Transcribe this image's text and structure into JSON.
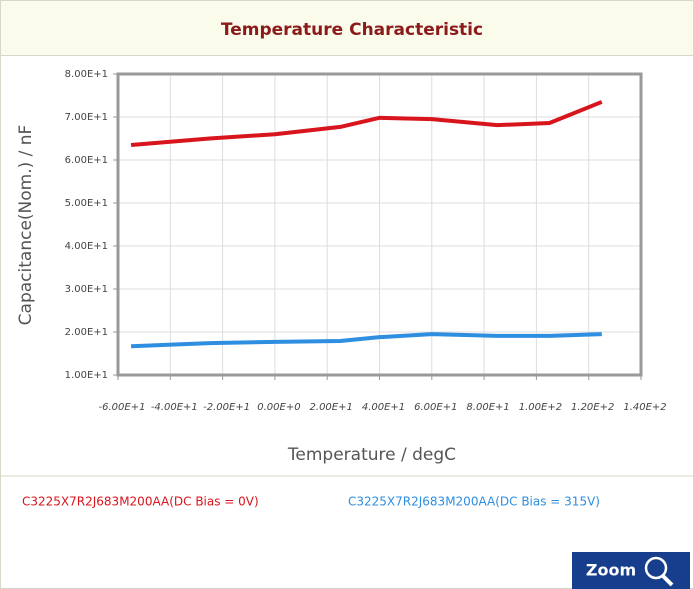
{
  "chart_data": {
    "type": "line",
    "title": "Temperature Characteristic",
    "x_label": "Temperature / degC",
    "y_label": "Capacitance(Nom.) / nF",
    "x": [
      -55,
      -25,
      0,
      25,
      40,
      60,
      85,
      105,
      125
    ],
    "series": [
      {
        "name": "C3225X7R2J683M200AA(DC Bias = 0V)",
        "color": "#d8141c",
        "values": [
          63.5,
          65,
          66,
          67.7,
          69.8,
          69.5,
          68.1,
          68.6,
          73.5
        ]
      },
      {
        "name": "C3225X7R2J683M200AA(DC Bias = 315V)",
        "color": "#2e8ee0",
        "values": [
          16.7,
          17.4,
          17.7,
          17.9,
          18.8,
          19.5,
          19.1,
          19.1,
          19.5
        ]
      }
    ],
    "xlim": [
      -60,
      140
    ],
    "xticks": [
      {
        "value": -60,
        "label": "-6.00E+1"
      },
      {
        "value": -40,
        "label": "-4.00E+1"
      },
      {
        "value": -20,
        "label": "-2.00E+1"
      },
      {
        "value": 0,
        "label": "0.00E+0"
      },
      {
        "value": 20,
        "label": "2.00E+1"
      },
      {
        "value": 40,
        "label": "4.00E+1"
      },
      {
        "value": 60,
        "label": "6.00E+1"
      },
      {
        "value": 80,
        "label": "8.00E+1"
      },
      {
        "value": 100,
        "label": "1.00E+2"
      },
      {
        "value": 120,
        "label": "1.20E+2"
      },
      {
        "value": 140,
        "label": "1.40E+2"
      }
    ],
    "ylim": [
      10,
      80
    ],
    "yticks": [
      {
        "value": 10,
        "label": "1.00E+1"
      },
      {
        "value": 20,
        "label": "2.00E+1"
      },
      {
        "value": 30,
        "label": "3.00E+1"
      },
      {
        "value": 40,
        "label": "4.00E+1"
      },
      {
        "value": 50,
        "label": "5.00E+1"
      },
      {
        "value": 60,
        "label": "6.00E+1"
      },
      {
        "value": 70,
        "label": "7.00E+1"
      },
      {
        "value": 80,
        "label": "8.00E+1"
      }
    ],
    "grid": true
  },
  "zoom_button": "Zoom"
}
